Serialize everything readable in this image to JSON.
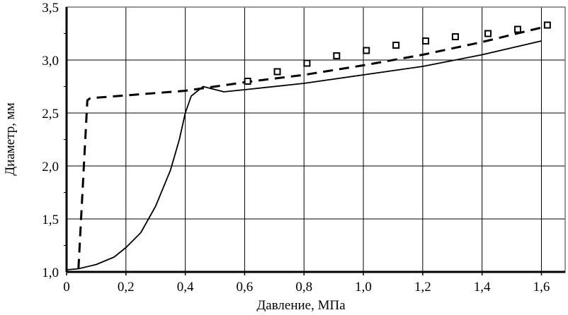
{
  "chart_data": {
    "type": "line",
    "title": "",
    "xlabel": "Давление, МПа",
    "ylabel": "Диаметр, мм",
    "xlim": [
      0,
      1.68
    ],
    "ylim": [
      1.0,
      3.5
    ],
    "grid": true,
    "x_ticks": [
      0,
      0.2,
      0.4,
      0.6,
      0.8,
      1.0,
      1.2,
      1.4,
      1.6
    ],
    "x_tick_labels": [
      "0",
      "0,2",
      "0,4",
      "0,6",
      "0,8",
      "1,0",
      "1,2",
      "1,4",
      "1,6"
    ],
    "y_ticks": [
      1.0,
      1.5,
      2.0,
      2.5,
      3.0,
      3.5
    ],
    "y_tick_labels": [
      "1,0",
      "1,5",
      "2,0",
      "2,5",
      "3,0",
      "3,5"
    ],
    "series": [
      {
        "name": "solid",
        "style": "solid",
        "x": [
          0,
          0.04,
          0.1,
          0.16,
          0.2,
          0.25,
          0.3,
          0.35,
          0.38,
          0.4,
          0.42,
          0.46,
          0.53,
          0.6,
          0.8,
          1.0,
          1.2,
          1.4,
          1.6
        ],
        "y": [
          1.02,
          1.03,
          1.07,
          1.14,
          1.23,
          1.37,
          1.62,
          1.96,
          2.25,
          2.5,
          2.66,
          2.75,
          2.7,
          2.72,
          2.78,
          2.86,
          2.94,
          3.05,
          3.18
        ]
      },
      {
        "name": "dashed",
        "style": "dashed",
        "x": [
          0.04,
          0.07,
          0.08,
          0.4,
          0.6,
          0.8,
          1.0,
          1.2,
          1.4,
          1.62
        ],
        "y": [
          1.03,
          2.62,
          2.64,
          2.71,
          2.79,
          2.86,
          2.95,
          3.05,
          3.17,
          3.32
        ]
      },
      {
        "name": "markers",
        "style": "square-markers",
        "x": [
          0.61,
          0.71,
          0.81,
          0.91,
          1.01,
          1.11,
          1.21,
          1.31,
          1.42,
          1.52,
          1.62
        ],
        "y": [
          2.8,
          2.89,
          2.97,
          3.04,
          3.09,
          3.14,
          3.18,
          3.22,
          3.25,
          3.29,
          3.33
        ]
      }
    ]
  }
}
